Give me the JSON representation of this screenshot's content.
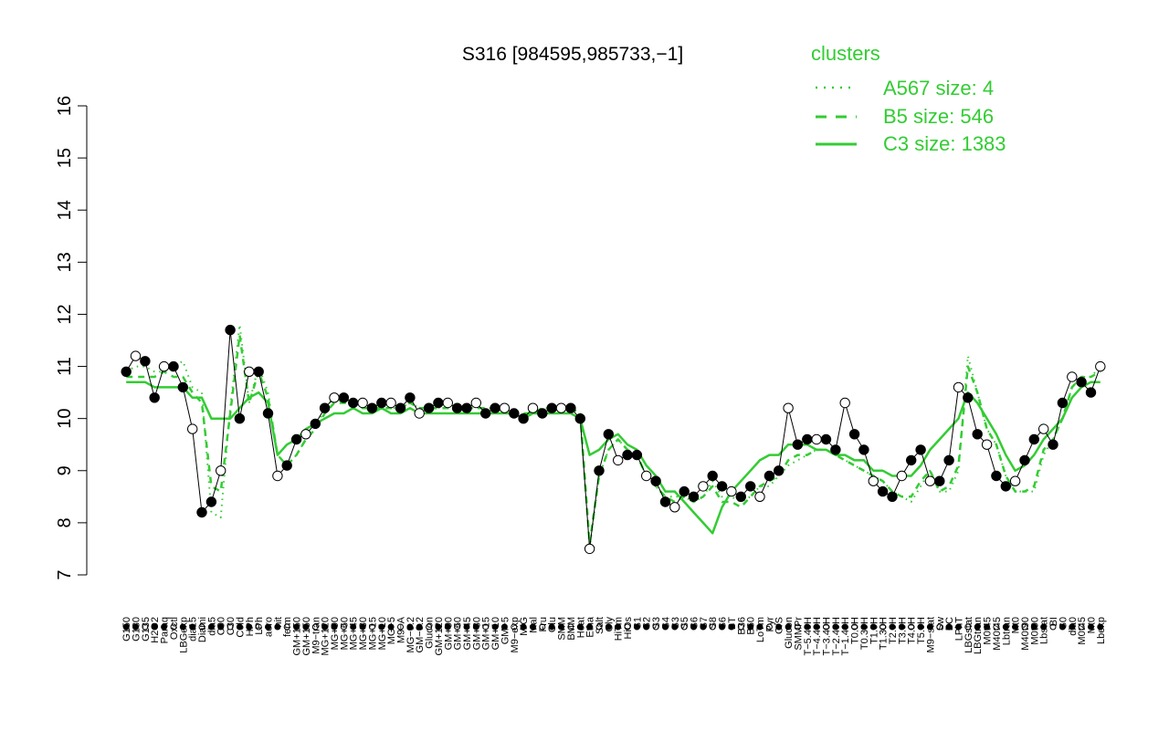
{
  "chart_data": {
    "type": "line",
    "title": "S316 [984595,985733,−1]",
    "xlabel": "",
    "ylabel": "",
    "ylim": [
      7,
      16
    ],
    "yticks": [
      7,
      8,
      9,
      10,
      11,
      12,
      13,
      14,
      15,
      16
    ],
    "legend": {
      "title": "clusters",
      "position": "top-right",
      "color": "#33cc33",
      "entries": [
        {
          "label": "A567 size: 4",
          "style": "dotted"
        },
        {
          "label": "B5 size: 546",
          "style": "dashed"
        },
        {
          "label": "C3 size: 1383",
          "style": "solid"
        }
      ]
    },
    "x_tick_labels": [
      "G150",
      "G180",
      "G135",
      "H2O2",
      "Paraq",
      "Oxctl",
      "LBGexp",
      "dia15",
      "Diami",
      "dia5",
      "C90",
      "C30",
      "Cold",
      "HPh",
      "LPh",
      "aero",
      "nit",
      "ferm",
      "GM+150",
      "GM+150",
      "M9−tran",
      "MG+120",
      "MG+90",
      "MG+60",
      "MG+45",
      "MG+30",
      "MG+15",
      "MG+10",
      "MG+5",
      "M9−A",
      "MG−0.2",
      "GM−0.2",
      "Glucon",
      "GM+120",
      "GM+90",
      "GM+60",
      "GM+45",
      "GM+30",
      "GM+15",
      "GM+10",
      "GM+5",
      "M9−exp",
      "M/G",
      "Mal",
      "Fru",
      "Glu",
      "SMM",
      "BMM",
      "Heat",
      "Etha",
      "Salt",
      "Gly",
      "HiTm",
      "HiOs",
      "S1",
      "S2",
      "S3",
      "S4",
      "S3",
      "S5",
      "S6",
      "S7",
      "S8",
      "S6",
      "BT",
      "B36",
      "B60",
      "LoTm",
      "Pyr",
      "G/S",
      "Glucon",
      "SMMPr",
      "T−5.40H",
      "T−4.40H",
      "T−3.40H",
      "T−2.40H",
      "T−1.40H",
      "T0.0H",
      "T0.30H",
      "T1.0H",
      "T1.30H",
      "T2.0H",
      "T3.0H",
      "T4.0H",
      "T5.0H",
      "M9−stat",
      "Sw",
      "BC",
      "LPhT",
      "LBGstat",
      "LBGtran",
      "M0t45",
      "M40t45",
      "Lbtran",
      "Mt0",
      "M40t90",
      "M0t90",
      "Lbstat",
      "BI",
      "S0",
      "dia0",
      "M0t45",
      "Mt0",
      "Lbexp"
    ],
    "series": [
      {
        "name": "A567 size: 4",
        "style": "dotted",
        "values": [
          10.9,
          11.0,
          11.0,
          10.9,
          10.9,
          11.0,
          11.1,
          10.6,
          10.5,
          8.2,
          8.1,
          10.2,
          11.8,
          10.3,
          11.0,
          10.5,
          9.3,
          9.1,
          9.3,
          9.6,
          9.8,
          10.2,
          10.4,
          10.3,
          10.3,
          10.2,
          10.2,
          10.3,
          10.2,
          10.2,
          10.3,
          10.2,
          10.2,
          10.2,
          10.3,
          10.2,
          10.2,
          10.2,
          10.2,
          10.2,
          10.2,
          10.1,
          10.1,
          10.1,
          10.2,
          10.2,
          10.2,
          10.2,
          10.1,
          7.5,
          8.9,
          9.4,
          9.6,
          9.4,
          9.3,
          8.9,
          8.7,
          8.5,
          8.5,
          8.5,
          8.4,
          8.5,
          8.8,
          8.5,
          8.5,
          8.4,
          8.5,
          8.7,
          8.7,
          8.9,
          9.1,
          9.2,
          9.3,
          9.4,
          9.4,
          9.3,
          9.2,
          9.1,
          9.0,
          8.9,
          8.8,
          8.6,
          8.5,
          8.4,
          8.7,
          9.0,
          8.6,
          8.6,
          9.0,
          11.2,
          10.5,
          9.8,
          9.5,
          8.9,
          8.6,
          8.6,
          8.6,
          9.3,
          9.6,
          10.0,
          10.6,
          10.8,
          10.8,
          11.0
        ]
      },
      {
        "name": "B5 size: 546",
        "style": "dashed",
        "values": [
          10.8,
          10.8,
          10.8,
          10.8,
          10.9,
          10.8,
          10.8,
          10.5,
          10.3,
          8.7,
          8.6,
          10.1,
          11.6,
          10.3,
          10.9,
          10.4,
          9.3,
          9.1,
          9.3,
          9.6,
          9.8,
          10.1,
          10.3,
          10.3,
          10.3,
          10.2,
          10.2,
          10.2,
          10.2,
          10.2,
          10.3,
          10.2,
          10.2,
          10.2,
          10.2,
          10.2,
          10.2,
          10.2,
          10.2,
          10.2,
          10.2,
          10.1,
          10.1,
          10.1,
          10.2,
          10.2,
          10.2,
          10.2,
          10.1,
          7.6,
          8.9,
          9.4,
          9.6,
          9.4,
          9.3,
          8.9,
          8.7,
          8.5,
          8.4,
          8.5,
          8.4,
          8.5,
          8.7,
          8.4,
          8.4,
          8.3,
          8.5,
          8.7,
          8.8,
          8.9,
          9.2,
          9.3,
          9.3,
          9.4,
          9.4,
          9.3,
          9.2,
          9.1,
          9.0,
          8.9,
          8.8,
          8.6,
          8.5,
          8.5,
          8.8,
          9.0,
          8.6,
          8.7,
          9.1,
          11.0,
          10.5,
          9.8,
          9.5,
          8.9,
          8.6,
          8.6,
          8.7,
          9.4,
          9.6,
          10.0,
          10.6,
          10.8,
          10.8,
          10.9
        ]
      },
      {
        "name": "C3 size: 1383",
        "style": "solid",
        "values": [
          10.7,
          10.7,
          10.7,
          10.6,
          10.6,
          10.6,
          10.6,
          10.4,
          10.4,
          10.0,
          10.0,
          10.0,
          10.2,
          10.4,
          10.5,
          10.3,
          9.3,
          9.5,
          9.6,
          9.8,
          9.9,
          10.0,
          10.1,
          10.1,
          10.2,
          10.1,
          10.1,
          10.2,
          10.1,
          10.1,
          10.2,
          10.1,
          10.1,
          10.1,
          10.1,
          10.1,
          10.1,
          10.1,
          10.1,
          10.1,
          10.1,
          10.1,
          10.0,
          10.1,
          10.1,
          10.1,
          10.1,
          10.1,
          10.0,
          9.3,
          9.4,
          9.6,
          9.7,
          9.5,
          9.4,
          9.1,
          8.9,
          8.6,
          8.6,
          8.4,
          8.2,
          8.0,
          7.8,
          8.3,
          8.6,
          8.8,
          9.0,
          9.2,
          9.3,
          9.3,
          9.5,
          9.5,
          9.5,
          9.4,
          9.4,
          9.3,
          9.3,
          9.2,
          9.2,
          9.0,
          9.0,
          8.9,
          8.9,
          8.9,
          9.1,
          9.4,
          9.6,
          9.8,
          10.0,
          10.5,
          10.3,
          10.0,
          9.7,
          9.3,
          9.0,
          9.1,
          9.3,
          9.6,
          9.8,
          10.0,
          10.4,
          10.6,
          10.7,
          10.7
        ]
      },
      {
        "name": "",
        "style": "points",
        "values": [
          10.9,
          11.2,
          11.1,
          10.4,
          11.0,
          11.0,
          10.6,
          9.8,
          8.2,
          8.4,
          9.0,
          11.7,
          10.0,
          10.9,
          10.9,
          10.1,
          8.9,
          9.1,
          9.6,
          9.7,
          9.9,
          10.2,
          10.4,
          10.4,
          10.3,
          10.3,
          10.2,
          10.3,
          10.3,
          10.2,
          10.4,
          10.1,
          10.2,
          10.3,
          10.3,
          10.2,
          10.2,
          10.3,
          10.1,
          10.2,
          10.2,
          10.1,
          10.0,
          10.2,
          10.1,
          10.2,
          10.2,
          10.2,
          10.0,
          7.5,
          9.0,
          9.7,
          9.2,
          9.3,
          9.3,
          8.9,
          8.8,
          8.4,
          8.3,
          8.6,
          8.5,
          8.7,
          8.9,
          8.7,
          8.6,
          8.5,
          8.7,
          8.5,
          8.9,
          9.0,
          10.2,
          9.5,
          9.6,
          9.6,
          9.6,
          9.4,
          10.3,
          9.7,
          9.4,
          8.8,
          8.6,
          8.5,
          8.9,
          9.2,
          9.4,
          8.8,
          8.8,
          9.2,
          10.6,
          10.4,
          9.7,
          9.5,
          8.9,
          8.7,
          8.8,
          9.2,
          9.6,
          9.8,
          9.5,
          10.3,
          10.8,
          10.7,
          10.5,
          11.0
        ]
      }
    ]
  }
}
